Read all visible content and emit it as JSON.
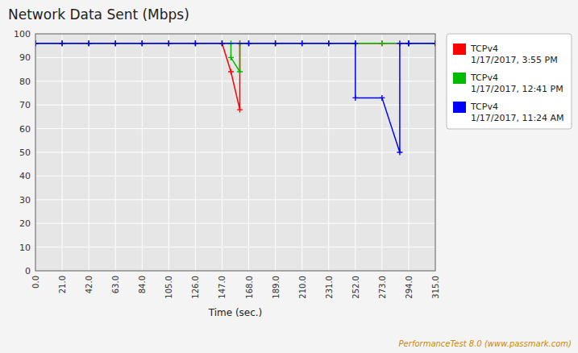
{
  "chart_data": {
    "type": "line",
    "title": "Network Data Sent (Mbps)",
    "x_label": "Time (sec.)",
    "annotations": [
      "PerformanceTest 8.0 (www.passmark.com)"
    ],
    "xlim": [
      0.0,
      315.0
    ],
    "ylim": [
      0,
      100
    ],
    "xticks": [
      {
        "value": 0.0,
        "label": "0.0"
      },
      {
        "value": 21.0,
        "label": "21.0"
      },
      {
        "value": 42.0,
        "label": "42.0"
      },
      {
        "value": 63.0,
        "label": "63.0"
      },
      {
        "value": 84.0,
        "label": "84.0"
      },
      {
        "value": 105.0,
        "label": "105.0"
      },
      {
        "value": 126.0,
        "label": "126.0"
      },
      {
        "value": 147.0,
        "label": "147.0"
      },
      {
        "value": 168.0,
        "label": "168.0"
      },
      {
        "value": 189.0,
        "label": "189.0"
      },
      {
        "value": 210.0,
        "label": "210.0"
      },
      {
        "value": 231.0,
        "label": "231.0"
      },
      {
        "value": 252.0,
        "label": "252.0"
      },
      {
        "value": 273.0,
        "label": "273.0"
      },
      {
        "value": 294.0,
        "label": "294.0"
      },
      {
        "value": 315.0,
        "label": "315.0"
      }
    ],
    "yticks": [
      0,
      10,
      20,
      30,
      40,
      50,
      60,
      70,
      80,
      90,
      100
    ],
    "grid": true,
    "legend": "right",
    "marker": "plus",
    "series": [
      {
        "name": "TCPv4\n1/17/2017, 3:55 PM",
        "color": "#ff0000",
        "x": [
          0,
          21,
          42,
          63,
          84,
          105,
          126,
          147,
          154,
          161,
          161,
          168,
          189,
          210,
          231,
          252,
          273,
          294,
          315
        ],
        "values": [
          96,
          96,
          96,
          96,
          96,
          96,
          96,
          96,
          84,
          68,
          96,
          96,
          96,
          96,
          96,
          96,
          96,
          96,
          96
        ]
      },
      {
        "name": "TCPv4\n1/17/2017, 12:41 PM",
        "color": "#00bb00",
        "x": [
          0,
          21,
          42,
          63,
          84,
          105,
          126,
          147,
          154,
          154,
          161,
          161,
          168,
          189,
          210,
          231,
          252,
          273,
          294,
          315
        ],
        "values": [
          96,
          96,
          96,
          96,
          96,
          96,
          96,
          96,
          96,
          90,
          84,
          96,
          96,
          96,
          96,
          96,
          96,
          96,
          96,
          96
        ]
      },
      {
        "name": "TCPv4\n1/17/2017, 11:24 AM",
        "color": "#0000ff",
        "x": [
          0,
          21,
          42,
          63,
          84,
          105,
          126,
          147,
          168,
          189,
          210,
          231,
          252,
          252,
          273,
          287,
          287,
          294,
          294,
          315
        ],
        "values": [
          96,
          96,
          96,
          96,
          96,
          96,
          96,
          96,
          96,
          96,
          96,
          96,
          96,
          73,
          73,
          50,
          96,
          96,
          96,
          96
        ]
      }
    ]
  }
}
